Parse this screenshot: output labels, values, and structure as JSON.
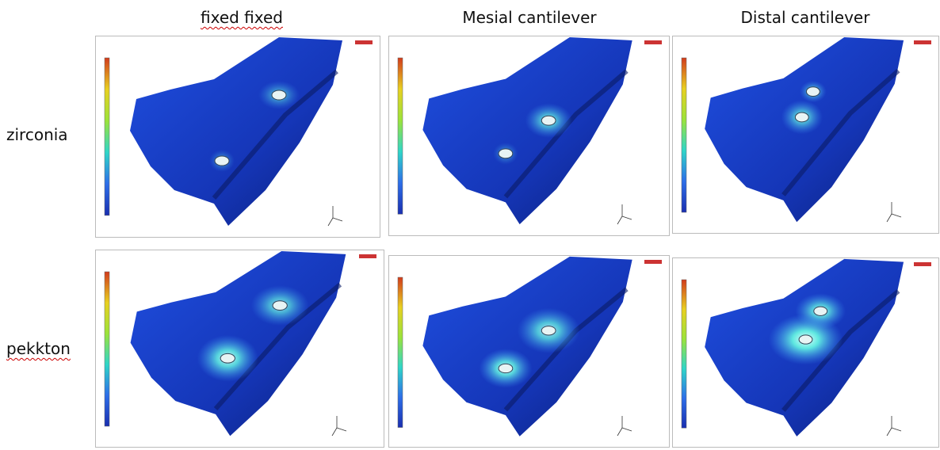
{
  "columns": [
    "fixed fixed",
    "Mesial cantilever",
    "Distal cantilever"
  ],
  "rows": [
    "zirconia",
    "pekkton"
  ]
}
